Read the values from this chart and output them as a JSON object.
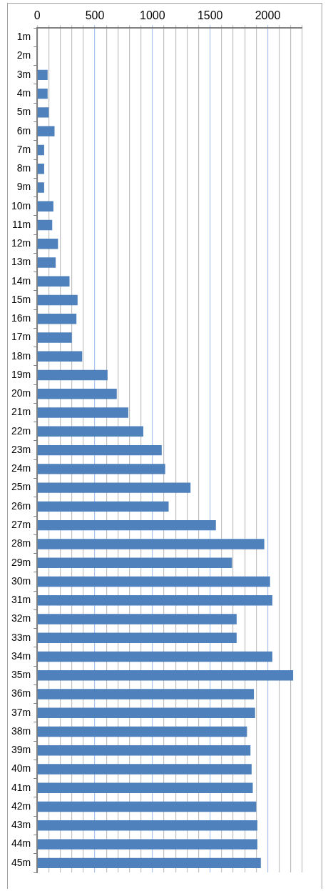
{
  "chart_data": {
    "type": "bar",
    "orientation": "horizontal",
    "categories": [
      "1m",
      "2m",
      "3m",
      "4m",
      "5m",
      "6m",
      "7m",
      "8m",
      "9m",
      "10m",
      "11m",
      "12m",
      "13m",
      "14m",
      "15m",
      "16m",
      "17m",
      "18m",
      "19m",
      "20m",
      "21m",
      "22m",
      "23m",
      "24m",
      "25m",
      "26m",
      "27m",
      "28m",
      "29m",
      "30m",
      "31m",
      "32m",
      "33m",
      "34m",
      "35m",
      "36m",
      "37m",
      "38m",
      "39m",
      "40m",
      "41m",
      "42m",
      "43m",
      "44m",
      "45m"
    ],
    "values": [
      null,
      null,
      90,
      90,
      100,
      150,
      60,
      60,
      60,
      140,
      130,
      180,
      160,
      280,
      350,
      340,
      300,
      390,
      610,
      690,
      790,
      920,
      1080,
      1110,
      1330,
      1140,
      1550,
      1970,
      1690,
      2020,
      2040,
      1730,
      1730,
      2040,
      2220,
      1880,
      1890,
      1820,
      1850,
      1860,
      1870,
      1900,
      1910,
      1910,
      1940
    ],
    "color": "#4f81bd",
    "xlim": [
      0,
      2300
    ],
    "xticks": [
      0,
      {
        "value": 100,
        "label": null
      },
      {
        "value": 200,
        "label": null
      },
      {
        "value": 300,
        "label": null
      },
      {
        "value": 400,
        "label": null
      },
      500,
      {
        "value": 600,
        "label": null
      },
      {
        "value": 700,
        "label": null
      },
      {
        "value": 800,
        "label": null
      },
      {
        "value": 900,
        "label": null
      },
      1000,
      {
        "value": 1100,
        "label": null
      },
      {
        "value": 1200,
        "label": null
      },
      {
        "value": 1300,
        "label": null
      },
      {
        "value": 1400,
        "label": null
      },
      1500,
      {
        "value": 1600,
        "label": null
      },
      {
        "value": 1700,
        "label": null
      },
      {
        "value": 1800,
        "label": null
      },
      {
        "value": 1900,
        "label": null
      },
      2000,
      {
        "value": 2100,
        "label": null
      },
      {
        "value": 2200,
        "label": null
      },
      {
        "value": 2300,
        "label": null
      }
    ],
    "grid": "x",
    "legend": false
  }
}
